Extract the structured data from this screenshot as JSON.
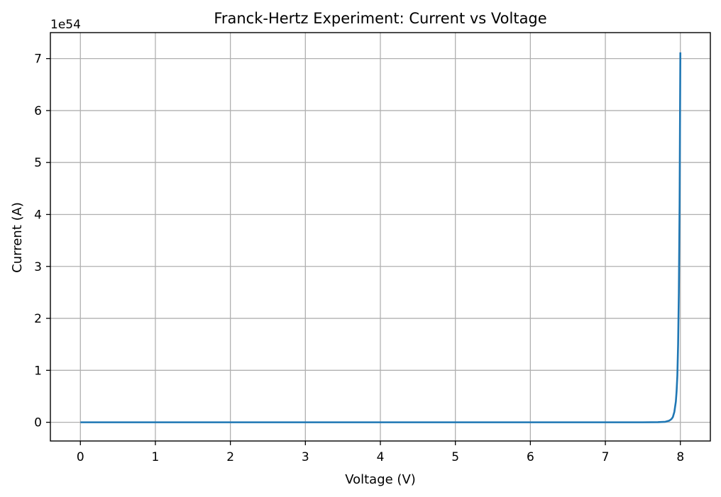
{
  "chart_data": {
    "type": "line",
    "title": "Franck-Hertz Experiment: Current vs Voltage",
    "xlabel": "Voltage (V)",
    "ylabel": "Current (A)",
    "y_offset_label": "1e54",
    "xlim": [
      -0.4,
      8.4
    ],
    "ylim": [
      -0.36,
      7.5
    ],
    "x_ticks": [
      0,
      1,
      2,
      3,
      4,
      5,
      6,
      7,
      8
    ],
    "x_tick_labels": [
      "0",
      "1",
      "2",
      "3",
      "4",
      "5",
      "6",
      "7",
      "8"
    ],
    "y_ticks": [
      0,
      1,
      2,
      3,
      4,
      5,
      6,
      7
    ],
    "y_tick_labels": [
      "0",
      "1",
      "2",
      "3",
      "4",
      "5",
      "6",
      "7"
    ],
    "grid": true,
    "legend": false,
    "colors": {
      "series": "#1f77b4",
      "grid": "#b0b0b0",
      "axes": "#000000"
    },
    "series": [
      {
        "x": [
          0,
          1,
          2,
          3,
          4,
          5,
          6,
          7,
          7.5,
          7.7,
          7.8,
          7.85,
          7.88,
          7.9,
          7.92,
          7.94,
          7.95,
          7.96,
          7.97,
          7.98,
          7.99,
          8.0
        ],
        "values": [
          0,
          0,
          0,
          0,
          0,
          0,
          0,
          0,
          0,
          0.002,
          0.01,
          0.03,
          0.06,
          0.1,
          0.2,
          0.4,
          0.6,
          0.9,
          1.5,
          2.5,
          4.2,
          7.12
        ]
      }
    ]
  }
}
